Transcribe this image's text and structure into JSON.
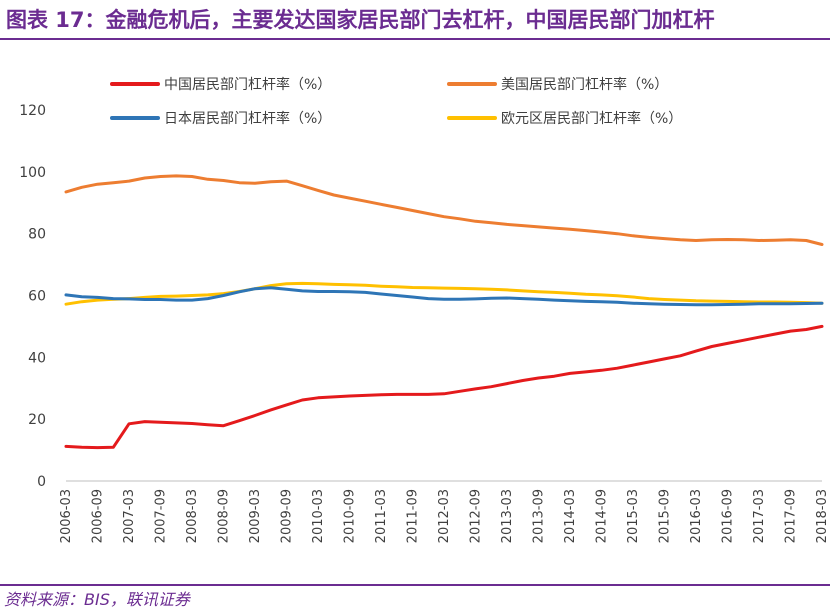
{
  "title": "图表 17：金融危机后，主要发达国家居民部门去杠杆，中国居民部门加杠杆",
  "source": "资料来源：BIS，联讯证券",
  "colors": {
    "china": "#e41a1c",
    "usa": "#ed7d31",
    "japan": "#2e75b6",
    "euro": "#ffc000",
    "title": "#6b2c91"
  },
  "chart_data": {
    "type": "line",
    "title": "",
    "xlabel": "",
    "ylabel": "",
    "ylim": [
      0,
      120
    ],
    "yticks": [
      "0",
      "20",
      "40",
      "60",
      "80",
      "100",
      "120"
    ],
    "x": [
      "2006-03",
      "2006-06",
      "2006-09",
      "2006-12",
      "2007-03",
      "2007-06",
      "2007-09",
      "2007-12",
      "2008-03",
      "2008-06",
      "2008-09",
      "2008-12",
      "2009-03",
      "2009-06",
      "2009-09",
      "2009-12",
      "2010-03",
      "2010-06",
      "2010-09",
      "2010-12",
      "2011-03",
      "2011-06",
      "2011-09",
      "2011-12",
      "2012-03",
      "2012-06",
      "2012-09",
      "2012-12",
      "2013-03",
      "2013-06",
      "2013-09",
      "2013-12",
      "2014-03",
      "2014-06",
      "2014-09",
      "2014-12",
      "2015-03",
      "2015-06",
      "2015-09",
      "2015-12",
      "2016-03",
      "2016-06",
      "2016-09",
      "2016-12",
      "2017-03",
      "2017-06",
      "2017-09",
      "2017-12",
      "2018-03"
    ],
    "xticks": [
      "2006-03",
      "2006-09",
      "2007-03",
      "2007-09",
      "2008-03",
      "2008-09",
      "2009-03",
      "2009-09",
      "2010-03",
      "2010-09",
      "2011-03",
      "2011-09",
      "2012-03",
      "2012-09",
      "2013-03",
      "2013-09",
      "2014-03",
      "2014-09",
      "2015-03",
      "2015-09",
      "2016-03",
      "2016-09",
      "2017-03",
      "2017-09",
      "2018-03"
    ],
    "legend_position": "top",
    "series": [
      {
        "key": "china",
        "name": "中国居民部门杠杆率（%）",
        "values": [
          11.2,
          10.9,
          10.8,
          10.9,
          18.5,
          19.2,
          19.0,
          18.8,
          18.6,
          18.2,
          17.9,
          19.5,
          21.2,
          23.0,
          24.6,
          26.2,
          26.9,
          27.2,
          27.5,
          27.7,
          27.9,
          28.0,
          28.0,
          28.0,
          28.2,
          29.0,
          29.8,
          30.5,
          31.5,
          32.5,
          33.3,
          33.9,
          34.8,
          35.3,
          35.8,
          36.5,
          37.5,
          38.5,
          39.5,
          40.5,
          42.0,
          43.5,
          44.5,
          45.5,
          46.5,
          47.5,
          48.5,
          49.0,
          50.0
        ]
      },
      {
        "key": "usa",
        "name": "美国居民部门杠杆率（%）",
        "values": [
          93.5,
          95.0,
          96.0,
          96.5,
          97.0,
          98.0,
          98.5,
          98.7,
          98.5,
          97.6,
          97.2,
          96.5,
          96.3,
          96.8,
          97.0,
          95.5,
          94.0,
          92.5,
          91.5,
          90.5,
          89.5,
          88.5,
          87.5,
          86.5,
          85.5,
          84.8,
          84.0,
          83.5,
          83.0,
          82.6,
          82.2,
          81.8,
          81.4,
          81.0,
          80.5,
          80.0,
          79.3,
          78.8,
          78.4,
          78.0,
          77.8,
          78.0,
          78.1,
          78.0,
          77.8,
          77.9,
          78.0,
          77.8,
          76.5
        ]
      },
      {
        "key": "japan",
        "name": "日本居民部门杠杆率（%）",
        "values": [
          60.2,
          59.6,
          59.4,
          59.0,
          58.9,
          58.7,
          58.7,
          58.5,
          58.5,
          59.0,
          60.0,
          61.2,
          62.2,
          62.5,
          62.0,
          61.5,
          61.3,
          61.3,
          61.2,
          61.0,
          60.5,
          60.0,
          59.5,
          59.0,
          58.8,
          58.8,
          58.9,
          59.1,
          59.2,
          59.0,
          58.8,
          58.5,
          58.3,
          58.1,
          58.0,
          57.8,
          57.5,
          57.3,
          57.2,
          57.1,
          57.0,
          57.0,
          57.1,
          57.2,
          57.3,
          57.3,
          57.3,
          57.4,
          57.5
        ]
      },
      {
        "key": "euro",
        "name": "欧元区居民部门杠杆率（%）",
        "values": [
          57.2,
          58.0,
          58.5,
          58.8,
          59.0,
          59.4,
          59.7,
          59.8,
          60.0,
          60.2,
          60.6,
          61.3,
          62.2,
          63.2,
          63.8,
          63.9,
          63.8,
          63.6,
          63.5,
          63.3,
          63.0,
          62.8,
          62.6,
          62.5,
          62.4,
          62.3,
          62.2,
          62.0,
          61.8,
          61.5,
          61.2,
          61.0,
          60.7,
          60.4,
          60.2,
          59.9,
          59.5,
          59.0,
          58.7,
          58.5,
          58.3,
          58.2,
          58.1,
          58.0,
          57.9,
          57.9,
          57.8,
          57.7,
          57.5
        ]
      }
    ]
  }
}
